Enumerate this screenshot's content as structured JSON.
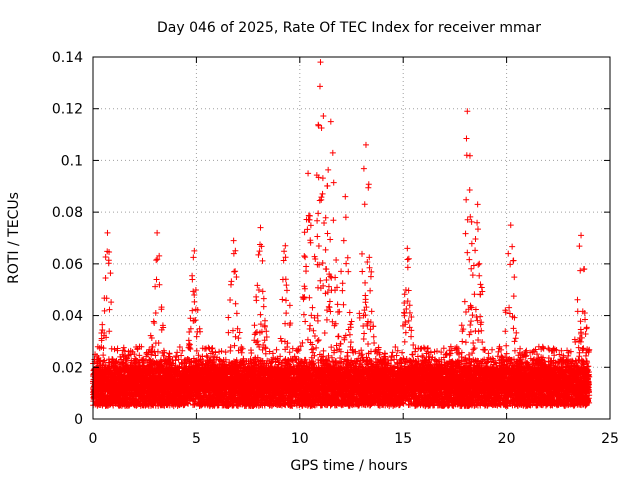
{
  "chart_data": {
    "type": "scatter",
    "title": "Day 046 of 2025, Rate Of TEC Index for receiver mmar",
    "xlabel": "GPS time / hours",
    "ylabel": "ROTI / TECUs",
    "xlim": [
      0,
      25
    ],
    "ylim": [
      0,
      0.14
    ],
    "x_ticks": [
      0,
      5,
      10,
      15,
      20,
      25
    ],
    "x_tick_labels": [
      "0",
      "5",
      "10",
      "15",
      "20",
      "25"
    ],
    "y_ticks": [
      0,
      0.02,
      0.04,
      0.06,
      0.08,
      0.1,
      0.12,
      0.14
    ],
    "y_tick_labels": [
      "0",
      "0.02",
      "0.04",
      "0.06",
      "0.08",
      "0.1",
      "0.12",
      "0.14"
    ],
    "grid": true,
    "marker": "plus",
    "color": "#ff0000",
    "series": [
      {
        "x_range": [
          0,
          24
        ],
        "baseline_band": [
          0.005,
          0.02
        ],
        "peaks": [
          {
            "x": 0.7,
            "y": 0.072
          },
          {
            "x": 3.1,
            "y": 0.072
          },
          {
            "x": 4.9,
            "y": 0.065
          },
          {
            "x": 6.8,
            "y": 0.069
          },
          {
            "x": 8.1,
            "y": 0.074
          },
          {
            "x": 9.3,
            "y": 0.067
          },
          {
            "x": 10.4,
            "y": 0.095
          },
          {
            "x": 11.0,
            "y": 0.138
          },
          {
            "x": 11.5,
            "y": 0.115
          },
          {
            "x": 12.2,
            "y": 0.086
          },
          {
            "x": 13.2,
            "y": 0.106
          },
          {
            "x": 15.2,
            "y": 0.066
          },
          {
            "x": 18.1,
            "y": 0.119
          },
          {
            "x": 18.6,
            "y": 0.083
          },
          {
            "x": 20.2,
            "y": 0.075
          },
          {
            "x": 23.6,
            "y": 0.071
          }
        ]
      }
    ]
  }
}
